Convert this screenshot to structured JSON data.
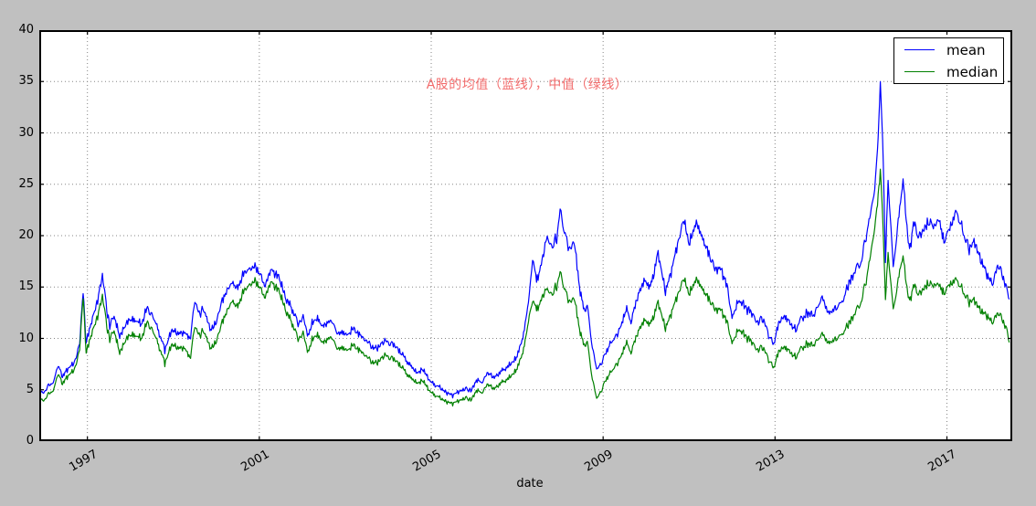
{
  "figure": {
    "background": "#c0c0c0",
    "plot_background": "#ffffff",
    "grid_color": "#858585",
    "spine_color": "#000000"
  },
  "annotation": {
    "text": "A股的均值（蓝线），中值（绿线）",
    "color": "#f26c6c"
  },
  "xlabel": "date",
  "legend": {
    "position": "upper right",
    "items": [
      {
        "label": "mean"
      },
      {
        "label": "median"
      }
    ]
  },
  "axes": {
    "xlim": [
      1995.88,
      2018.52
    ],
    "ylim": [
      0,
      40
    ],
    "xticks": [
      1997,
      2001,
      2005,
      2009,
      2013,
      2017
    ],
    "yticks": [
      0,
      5,
      10,
      15,
      20,
      25,
      30,
      35,
      40
    ]
  },
  "chart_data": {
    "type": "line",
    "title": "A股的均值（蓝线），中值（绿线）",
    "xlabel": "date",
    "ylabel": "",
    "xlim": [
      1995.88,
      2018.52
    ],
    "ylim": [
      0,
      40
    ],
    "xticks": [
      1997,
      2001,
      2005,
      2009,
      2013,
      2017
    ],
    "grid": true,
    "legend_position": "upper right",
    "x": [
      1995.9,
      1996.0,
      1996.1,
      1996.2,
      1996.32,
      1996.42,
      1996.55,
      1996.7,
      1996.82,
      1996.9,
      1996.97,
      1997.1,
      1997.22,
      1997.35,
      1997.45,
      1997.52,
      1997.62,
      1997.75,
      1997.9,
      1998.05,
      1998.25,
      1998.4,
      1998.6,
      1998.8,
      1998.95,
      1999.1,
      1999.25,
      1999.4,
      1999.5,
      1999.6,
      1999.72,
      1999.85,
      2000.0,
      2000.12,
      2000.25,
      2000.37,
      2000.5,
      2000.65,
      2000.9,
      2001.05,
      2001.12,
      2001.28,
      2001.45,
      2001.6,
      2001.8,
      2001.92,
      2002.02,
      2002.12,
      2002.3,
      2002.5,
      2002.65,
      2002.85,
      2003.05,
      2003.2,
      2003.4,
      2003.6,
      2003.75,
      2003.92,
      2004.1,
      2004.3,
      2004.5,
      2004.65,
      2004.8,
      2005.0,
      2005.2,
      2005.35,
      2005.5,
      2005.65,
      2005.8,
      2005.92,
      2006.05,
      2006.18,
      2006.3,
      2006.45,
      2006.6,
      2006.8,
      2007.0,
      2007.15,
      2007.28,
      2007.36,
      2007.45,
      2007.58,
      2007.7,
      2007.8,
      2007.92,
      2008.0,
      2008.1,
      2008.22,
      2008.32,
      2008.45,
      2008.56,
      2008.63,
      2008.75,
      2008.85,
      2008.95,
      2009.05,
      2009.18,
      2009.3,
      2009.42,
      2009.55,
      2009.65,
      2009.8,
      2009.95,
      2010.1,
      2010.28,
      2010.45,
      2010.6,
      2010.75,
      2010.87,
      2011.0,
      2011.15,
      2011.3,
      2011.48,
      2011.6,
      2011.75,
      2011.88,
      2012.0,
      2012.15,
      2012.32,
      2012.48,
      2012.6,
      2012.72,
      2012.85,
      2012.97,
      2013.1,
      2013.22,
      2013.35,
      2013.48,
      2013.62,
      2013.78,
      2013.92,
      2014.08,
      2014.25,
      2014.42,
      2014.58,
      2014.72,
      2014.88,
      2015.0,
      2015.12,
      2015.22,
      2015.32,
      2015.4,
      2015.45,
      2015.52,
      2015.57,
      2015.63,
      2015.7,
      2015.75,
      2015.83,
      2015.92,
      2015.98,
      2016.07,
      2016.13,
      2016.22,
      2016.33,
      2016.45,
      2016.6,
      2016.72,
      2016.82,
      2016.93,
      2017.05,
      2017.22,
      2017.38,
      2017.5,
      2017.65,
      2017.8,
      2017.95,
      2018.08,
      2018.18,
      2018.3,
      2018.4,
      2018.45
    ],
    "series": [
      {
        "name": "mean",
        "color": "#0000ff",
        "values": [
          4.6,
          4.9,
          5.3,
          5.8,
          7.2,
          6.3,
          7.0,
          7.8,
          9.5,
          14.5,
          9.7,
          11.6,
          13.5,
          16.0,
          12.8,
          11.2,
          12.0,
          10.3,
          11.4,
          11.9,
          11.4,
          13.1,
          11.4,
          8.9,
          10.8,
          10.4,
          10.7,
          9.9,
          13.9,
          12.5,
          12.8,
          10.8,
          11.6,
          13.6,
          14.7,
          15.4,
          15.0,
          16.3,
          16.9,
          16.1,
          15.0,
          16.8,
          15.9,
          14.1,
          12.5,
          11.4,
          12.2,
          10.3,
          12.0,
          11.2,
          11.6,
          10.6,
          10.4,
          10.9,
          10.1,
          9.3,
          9.0,
          9.7,
          9.5,
          8.6,
          7.4,
          6.7,
          7.0,
          5.7,
          5.2,
          4.8,
          4.4,
          4.9,
          5.1,
          4.9,
          5.9,
          5.7,
          6.6,
          6.2,
          6.7,
          7.3,
          8.2,
          10.5,
          14.0,
          17.9,
          15.6,
          17.6,
          20.1,
          18.7,
          19.9,
          22.2,
          20.4,
          18.6,
          19.5,
          15.1,
          12.6,
          13.2,
          9.2,
          6.8,
          7.6,
          8.3,
          9.8,
          10.1,
          11.3,
          12.9,
          11.7,
          13.9,
          15.8,
          14.9,
          18.3,
          14.7,
          16.6,
          19.6,
          21.4,
          19.3,
          21.2,
          19.9,
          18.0,
          16.6,
          16.9,
          15.0,
          12.2,
          13.6,
          13.0,
          12.4,
          11.6,
          12.0,
          10.3,
          9.5,
          11.6,
          12.2,
          11.4,
          11.0,
          11.9,
          12.5,
          12.2,
          14.2,
          12.5,
          12.9,
          13.7,
          15.4,
          16.6,
          17.5,
          19.8,
          21.8,
          24.8,
          29.5,
          35.0,
          27.5,
          17.3,
          25.3,
          20.8,
          17.0,
          20.2,
          23.2,
          25.2,
          20.8,
          18.4,
          21.3,
          19.9,
          20.4,
          21.4,
          20.7,
          21.8,
          19.2,
          20.6,
          22.3,
          20.4,
          18.5,
          19.4,
          17.6,
          15.9,
          15.4,
          16.9,
          16.1,
          14.5,
          13.8
        ]
      },
      {
        "name": "median",
        "color": "#008000",
        "values": [
          3.9,
          4.1,
          4.5,
          5.0,
          6.4,
          5.6,
          6.3,
          7.1,
          8.9,
          14.0,
          8.7,
          10.4,
          12.0,
          14.0,
          11.2,
          9.9,
          10.6,
          8.7,
          9.9,
          10.4,
          10.0,
          11.7,
          10.0,
          7.6,
          9.4,
          9.0,
          9.2,
          8.0,
          11.4,
          10.4,
          10.7,
          9.0,
          9.7,
          11.5,
          12.7,
          13.6,
          13.2,
          14.6,
          15.5,
          14.8,
          13.9,
          15.6,
          14.6,
          12.9,
          11.1,
          9.9,
          10.6,
          8.7,
          10.4,
          9.6,
          10.0,
          9.1,
          8.9,
          9.3,
          8.6,
          7.8,
          7.6,
          8.3,
          8.1,
          7.3,
          6.2,
          5.7,
          5.9,
          4.7,
          4.2,
          3.9,
          3.6,
          4.0,
          4.2,
          4.0,
          4.9,
          4.7,
          5.5,
          5.1,
          5.6,
          6.1,
          7.0,
          9.0,
          12.0,
          13.8,
          12.8,
          14.0,
          15.0,
          14.1,
          15.2,
          16.2,
          14.9,
          13.5,
          14.0,
          11.0,
          9.2,
          9.7,
          6.1,
          4.0,
          4.9,
          5.7,
          6.9,
          7.3,
          8.3,
          9.6,
          8.7,
          10.4,
          11.9,
          11.3,
          13.5,
          11.1,
          12.5,
          14.5,
          15.7,
          14.4,
          15.7,
          14.9,
          13.7,
          12.7,
          12.9,
          11.5,
          9.7,
          10.8,
          10.2,
          9.6,
          8.9,
          9.2,
          7.9,
          7.2,
          8.8,
          9.2,
          8.6,
          8.3,
          9.0,
          9.5,
          9.3,
          10.6,
          9.6,
          9.9,
          10.5,
          11.5,
          12.5,
          13.6,
          15.5,
          17.8,
          21.0,
          24.0,
          26.5,
          20.5,
          13.7,
          18.3,
          15.3,
          12.9,
          14.9,
          16.9,
          17.8,
          14.9,
          13.5,
          15.2,
          14.3,
          14.7,
          15.4,
          15.0,
          15.4,
          14.2,
          15.2,
          15.7,
          14.6,
          13.4,
          13.7,
          12.7,
          12.0,
          11.6,
          12.3,
          11.8,
          10.6,
          9.6
        ]
      }
    ]
  }
}
